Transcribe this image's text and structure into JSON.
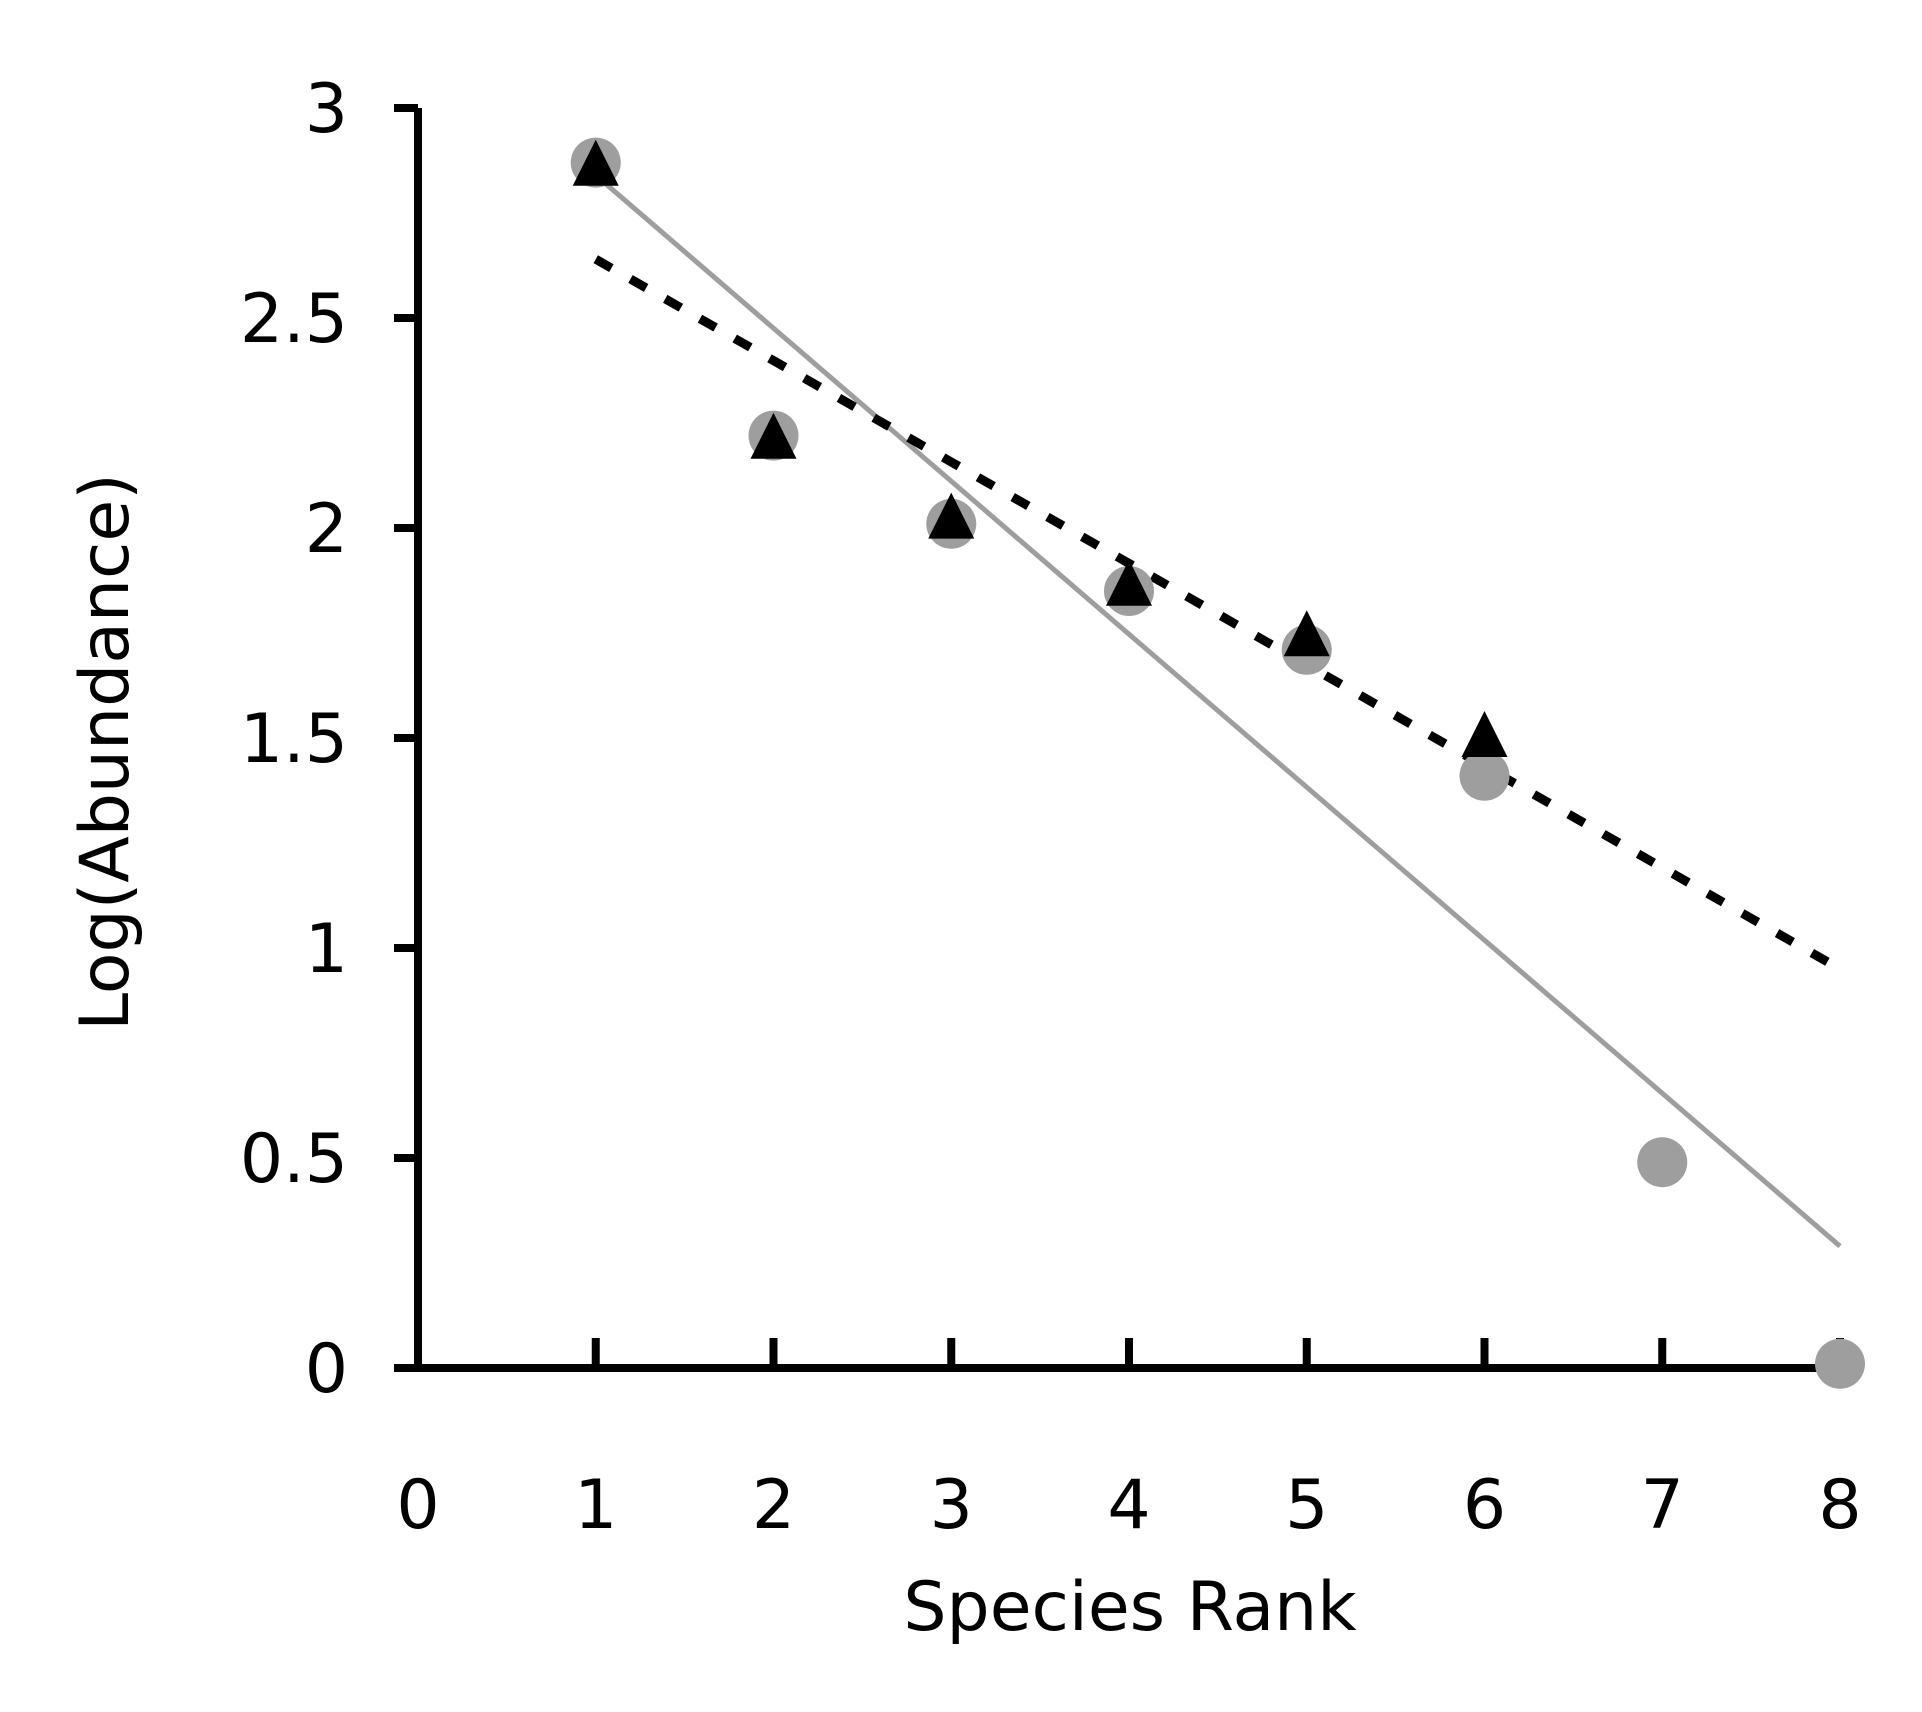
{
  "chart_data": {
    "type": "scatter",
    "title": "",
    "xlabel": "Species Rank",
    "ylabel": "Log(Abundance)",
    "xlim": [
      0,
      8
    ],
    "ylim": [
      0,
      3
    ],
    "xticks": [
      0,
      1,
      2,
      3,
      4,
      5,
      6,
      7,
      8
    ],
    "yticks": [
      0,
      0.5,
      1,
      1.5,
      2,
      2.5,
      3
    ],
    "xtick_labels": [
      "0",
      "1",
      "2",
      "3",
      "4",
      "5",
      "6",
      "7",
      "8"
    ],
    "ytick_labels": [
      "0",
      "0.5",
      "1",
      "1.5",
      "2",
      "2.5",
      "3"
    ],
    "grid": false,
    "series": [
      {
        "name": "circles",
        "marker": "circle",
        "color": "#9e9e9e",
        "x": [
          1,
          2,
          3,
          4,
          5,
          6,
          7,
          8
        ],
        "y": [
          2.87,
          2.22,
          2.01,
          1.85,
          1.71,
          1.41,
          0.49,
          0.01
        ]
      },
      {
        "name": "triangles",
        "marker": "triangle",
        "color": "#000000",
        "x": [
          1,
          2,
          3,
          4,
          5,
          6
        ],
        "y": [
          2.86,
          2.21,
          2.02,
          1.86,
          1.74,
          1.5
        ]
      }
    ],
    "trendlines": [
      {
        "name": "circles-fit",
        "style": "solid",
        "color": "#9e9e9e",
        "x": [
          1,
          8
        ],
        "y": [
          2.84,
          0.29
        ]
      },
      {
        "name": "triangles-fit",
        "style": "dotted",
        "color": "#000000",
        "x": [
          1,
          8
        ],
        "y": [
          2.64,
          0.95
        ]
      }
    ]
  }
}
